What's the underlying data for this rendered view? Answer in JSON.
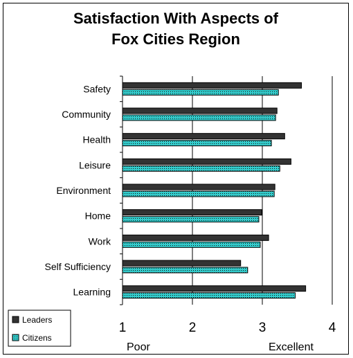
{
  "chart_data": {
    "type": "bar",
    "orientation": "horizontal",
    "title": [
      "Satisfaction With Aspects of",
      "Fox Cities Region"
    ],
    "categories": [
      "Safety",
      "Community",
      "Health",
      "Leisure",
      "Environment",
      "Home",
      "Work",
      "Self Sufficiency",
      "Learning"
    ],
    "series": [
      {
        "name": "Leaders",
        "values": [
          3.56,
          3.21,
          3.32,
          3.41,
          3.18,
          2.99,
          3.09,
          2.69,
          3.62
        ],
        "color": "#333333"
      },
      {
        "name": "Citizens",
        "values": [
          3.23,
          3.19,
          3.13,
          3.25,
          3.17,
          2.95,
          2.97,
          2.79,
          3.47
        ],
        "color": "#33cccc"
      }
    ],
    "xlim": [
      1,
      4
    ],
    "xticks": [
      "1",
      "2",
      "3",
      "4"
    ],
    "xsublabels": {
      "left": "Poor",
      "right": "Excellent"
    },
    "legend_position": "bottom-left",
    "grid": true
  }
}
